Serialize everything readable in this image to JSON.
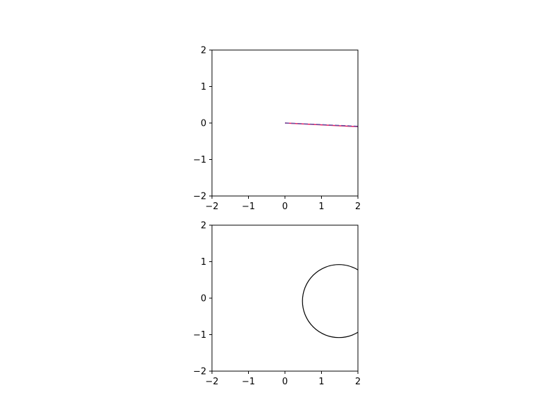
{
  "chart_data": [
    {
      "type": "line",
      "xlim": [
        -2,
        2
      ],
      "ylim": [
        -2,
        2
      ],
      "xticks": [
        -2,
        -1,
        0,
        1,
        2
      ],
      "yticks": [
        -2,
        -1,
        0,
        1,
        2
      ],
      "xtick_labels": [
        "−2",
        "−1",
        "0",
        "1",
        "2"
      ],
      "ytick_labels": [
        "−2",
        "−1",
        "0",
        "1",
        "2"
      ],
      "grid": false,
      "series": [
        {
          "style": "solid",
          "color": "#e8175d",
          "x": [
            0,
            2
          ],
          "y": [
            0,
            -0.1
          ]
        },
        {
          "style": "dashed",
          "color": "#6a4fa0",
          "x": [
            0,
            2
          ],
          "y": [
            0,
            -0.09
          ]
        }
      ]
    },
    {
      "type": "scatter",
      "xlim": [
        -2,
        2
      ],
      "ylim": [
        -2,
        2
      ],
      "xticks": [
        -2,
        -1,
        0,
        1,
        2
      ],
      "yticks": [
        -2,
        -1,
        0,
        1,
        2
      ],
      "xtick_labels": [
        "−2",
        "−1",
        "0",
        "1",
        "2"
      ],
      "ytick_labels": [
        "−2",
        "−1",
        "0",
        "1",
        "2"
      ],
      "grid": false,
      "circle": {
        "cx": 1.48,
        "cy": -0.08,
        "r": 1.0,
        "color": "#000000"
      }
    }
  ]
}
